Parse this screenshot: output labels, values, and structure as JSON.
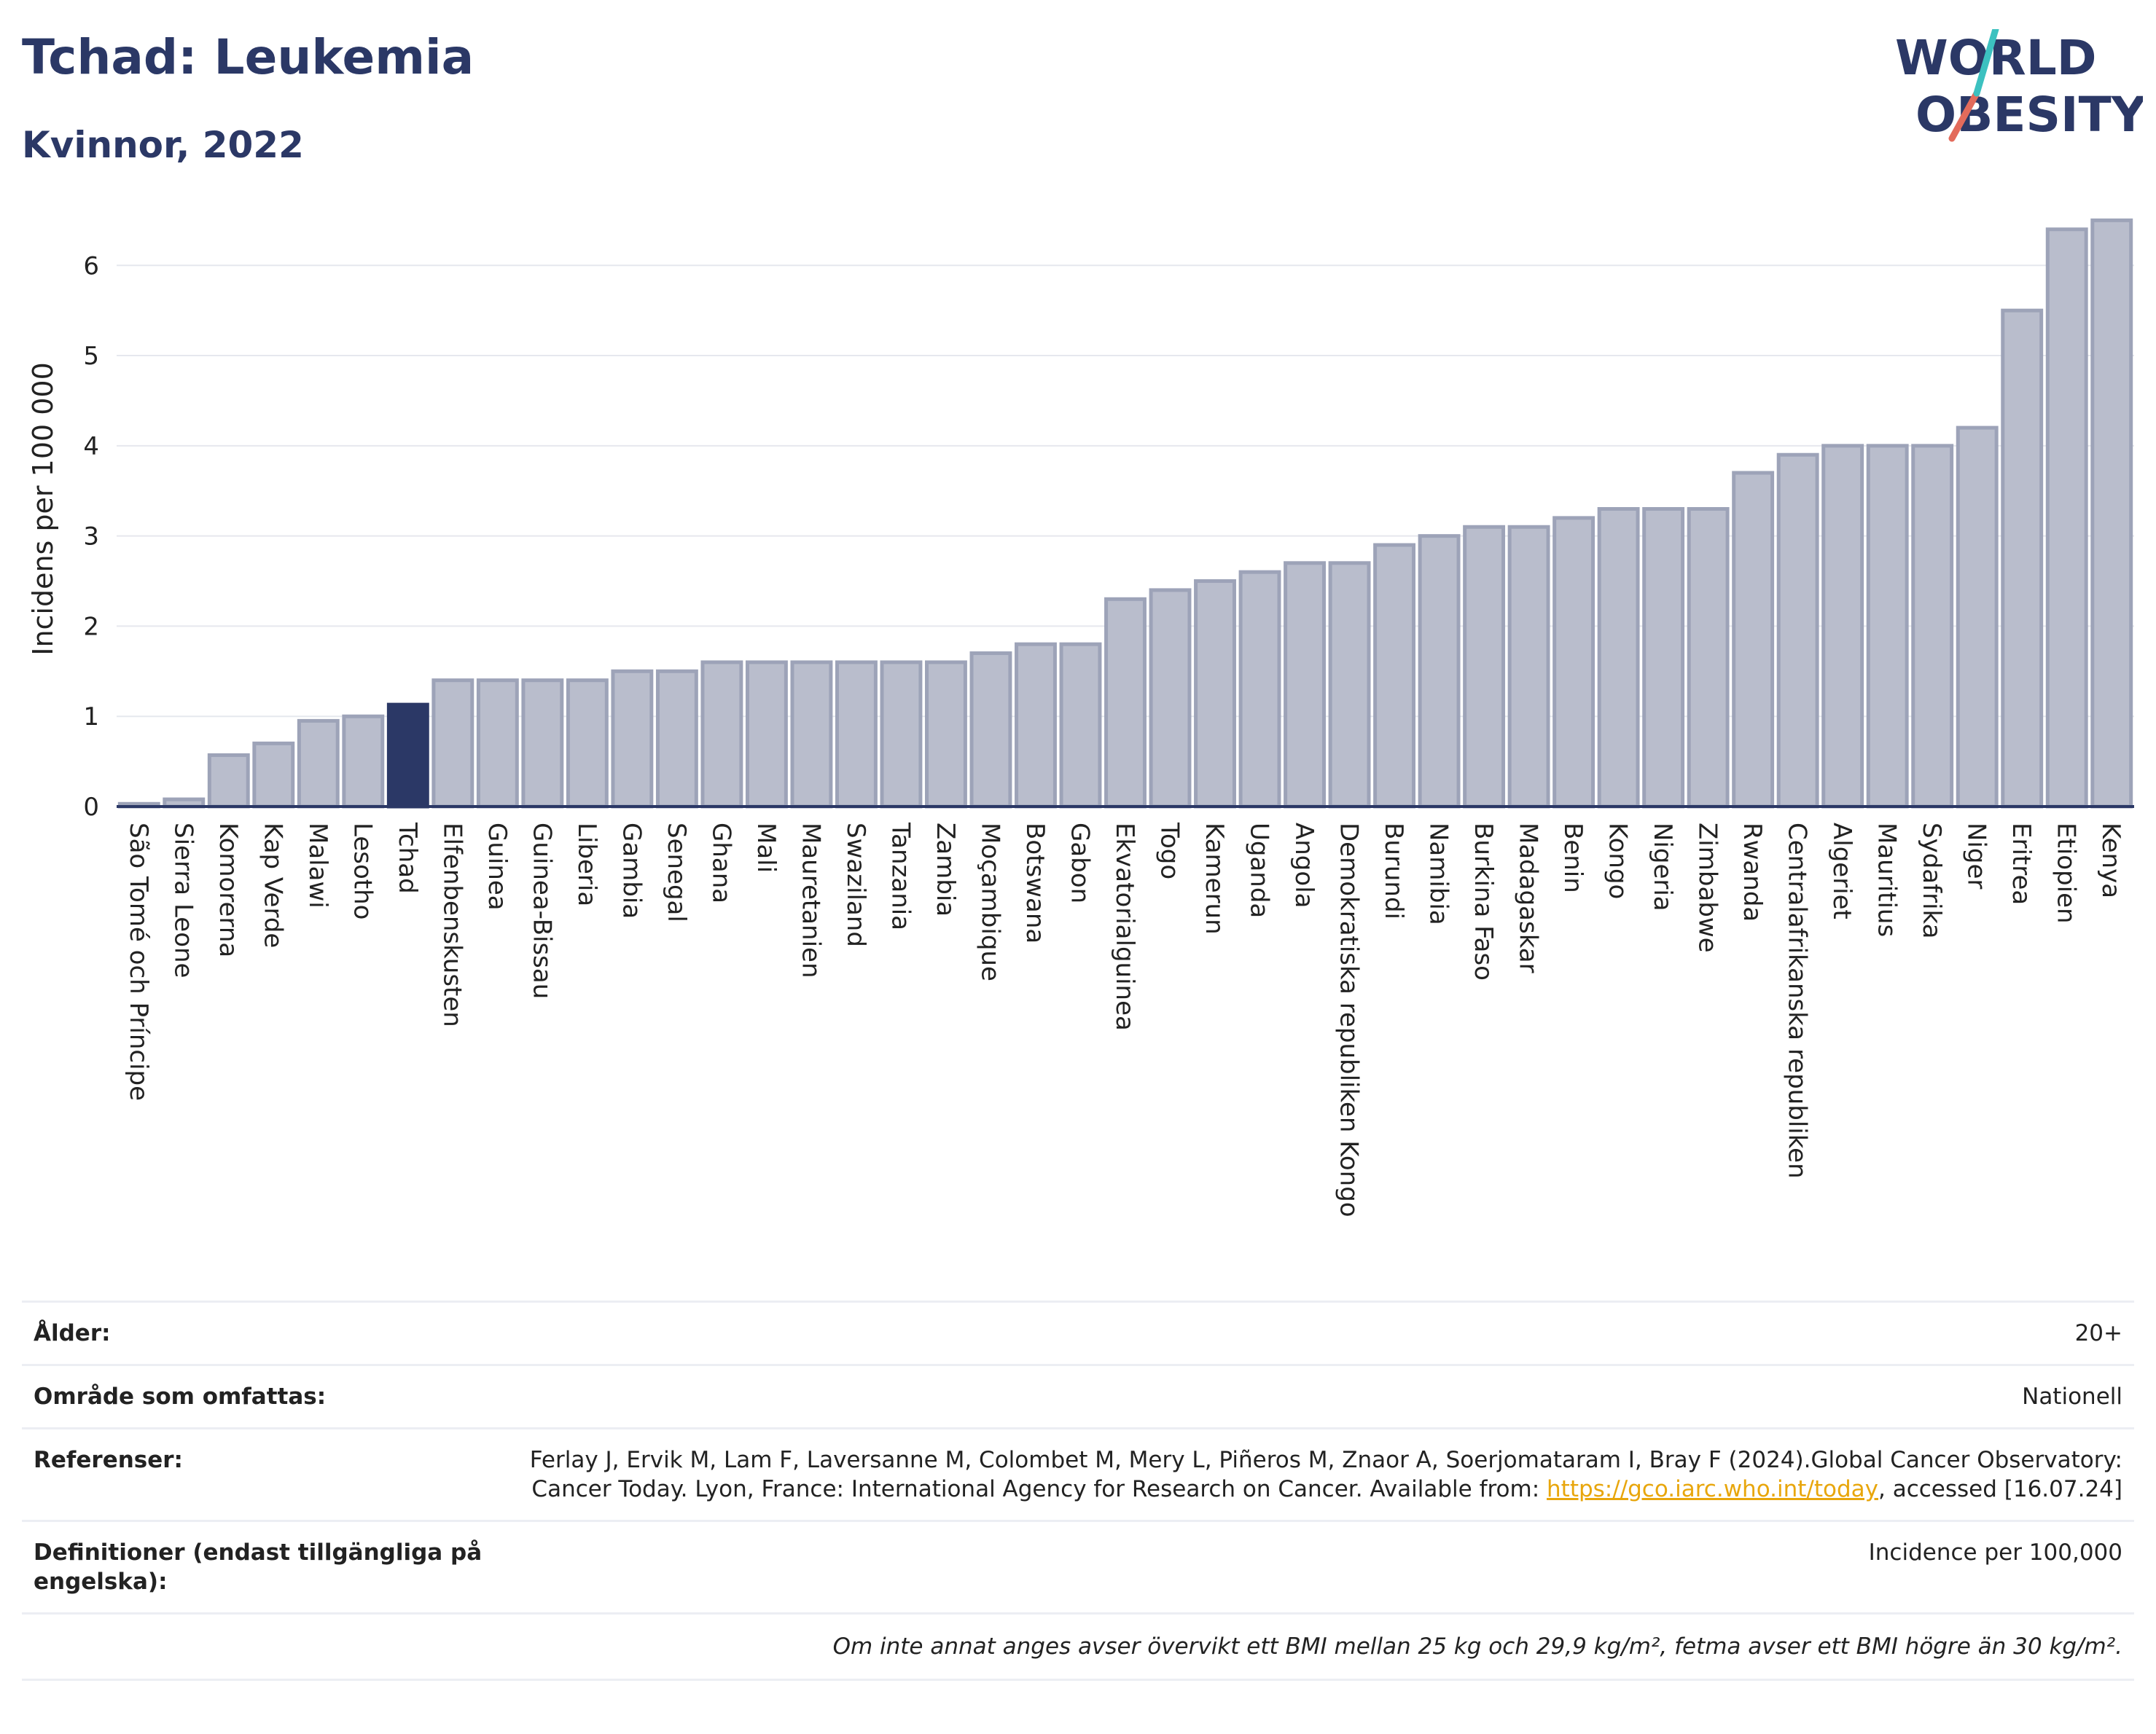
{
  "header": {
    "title": "Tchad: Leukemia",
    "subtitle": "Kvinnor, 2022"
  },
  "logo": {
    "line1": "WORLD",
    "line2": "OBESITY",
    "slash_colors": [
      "#3cc1c0",
      "#e36b5b"
    ]
  },
  "colors": {
    "bar": "#b9bdcc",
    "bar_stroke": "#9da3b8",
    "highlight": "#2b3866",
    "grid": "#e6e8ee",
    "axis": "#2b3866"
  },
  "chart_data": {
    "type": "bar",
    "ylabel": "Incidens per 100 000",
    "ylim": [
      0,
      6.6
    ],
    "yticks": [
      0,
      1,
      2,
      3,
      4,
      5,
      6
    ],
    "grid": true,
    "highlight": "Tchad",
    "categories": [
      "São Tomé och Príncipe",
      "Sierra Leone",
      "Komorerna",
      "Kap Verde",
      "Malawi",
      "Lesotho",
      "Tchad",
      "Elfenbenskusten",
      "Guinea",
      "Guinea-Bissau",
      "Liberia",
      "Gambia",
      "Senegal",
      "Ghana",
      "Mali",
      "Mauretanien",
      "Swaziland",
      "Tanzania",
      "Zambia",
      "Moçambique",
      "Botswana",
      "Gabon",
      "Ekvatorialguinea",
      "Togo",
      "Kamerun",
      "Uganda",
      "Angola",
      "Demokratiska republiken Kongo",
      "Burundi",
      "Namibia",
      "Burkina Faso",
      "Madagaskar",
      "Benin",
      "Kongo",
      "Nigeria",
      "Zimbabwe",
      "Rwanda",
      "Centralafrikanska republiken",
      "Algeriet",
      "Mauritius",
      "Sydafrika",
      "Niger",
      "Eritrea",
      "Etiopien",
      "Kenya"
    ],
    "values": [
      0.03,
      0.08,
      0.57,
      0.7,
      0.95,
      1.0,
      1.13,
      1.4,
      1.4,
      1.4,
      1.4,
      1.5,
      1.5,
      1.6,
      1.6,
      1.6,
      1.6,
      1.6,
      1.6,
      1.7,
      1.8,
      1.8,
      2.3,
      2.4,
      2.5,
      2.6,
      2.7,
      2.7,
      2.9,
      3.0,
      3.1,
      3.1,
      3.2,
      3.3,
      3.3,
      3.3,
      3.7,
      3.9,
      4.0,
      4.0,
      4.0,
      4.2,
      5.5,
      6.4,
      6.5
    ]
  },
  "meta": {
    "age_label": "Ålder:",
    "age_value": "20+",
    "area_label": "Område som omfattas:",
    "area_value": "Nationell",
    "ref_label": "Referenser:",
    "ref_text_1": "Ferlay J, Ervik M, Lam F, Laversanne M, Colombet M, Mery L, Piñeros M, Znaor A, Soerjomataram I, Bray F (2024).Global Cancer Observatory: Cancer Today. Lyon, France: International Agency for Research on Cancer. Available from: ",
    "ref_link": "https://gco.iarc.who.int/today",
    "ref_text_2": ", accessed [16.07.24]",
    "def_label": "Definitioner (endast tillgängliga på engelska):",
    "def_value": "Incidence per 100,000",
    "note": "Om inte annat anges avser övervikt ett BMI mellan 25 kg och 29,9 kg/m², fetma avser ett BMI högre än 30 kg/m²."
  }
}
